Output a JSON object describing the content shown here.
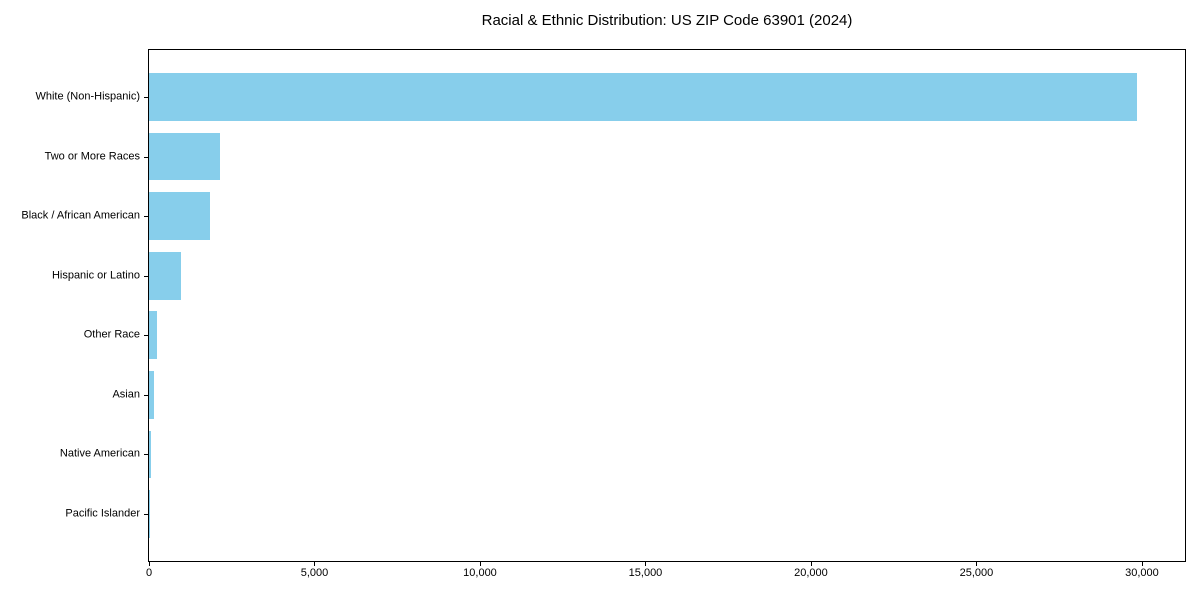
{
  "chart_data": {
    "type": "bar",
    "orientation": "horizontal",
    "title": "Racial & Ethnic Distribution: US ZIP Code 63901 (2024)",
    "categories": [
      "White (Non-Hispanic)",
      "Two or More Races",
      "Black / African American",
      "Hispanic or Latino",
      "Other Race",
      "Asian",
      "Native American",
      "Pacific Islander"
    ],
    "values": [
      29840,
      2130,
      1840,
      960,
      240,
      160,
      75,
      10
    ],
    "xlabel": "",
    "ylabel": "",
    "xlim": [
      0,
      31300
    ],
    "x_ticks": [
      0,
      5000,
      10000,
      15000,
      20000,
      25000,
      30000
    ],
    "x_tick_labels": [
      "0",
      "5,000",
      "10,000",
      "15,000",
      "20,000",
      "25,000",
      "30,000"
    ],
    "bar_color": "#87CEEB",
    "axis_color": "#000000",
    "text_color": "#000000",
    "background_color": "#ffffff",
    "grid": false,
    "legend": null
  }
}
